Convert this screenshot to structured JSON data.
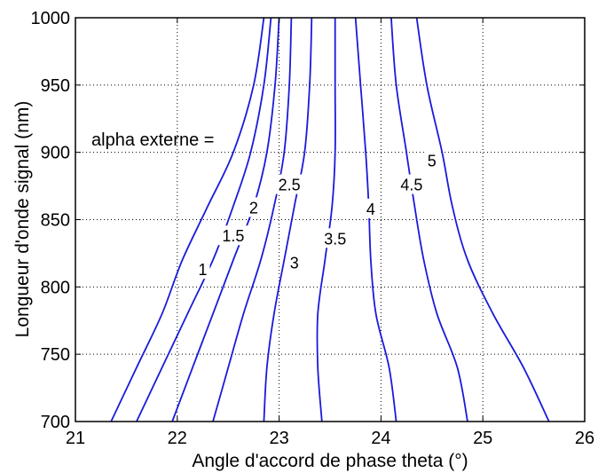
{
  "chart_data": {
    "type": "line",
    "xlabel": "Angle d'accord de phase theta (°)",
    "ylabel": "Longueur d'onde signal (nm)",
    "xlim": [
      21,
      26
    ],
    "ylim": [
      700,
      1000
    ],
    "xticks": [
      21,
      22,
      23,
      24,
      25,
      26
    ],
    "yticks": [
      700,
      750,
      800,
      850,
      900,
      950,
      1000
    ],
    "grid": true,
    "line_color": "#1a1adb",
    "annotation": "alpha externe =",
    "series": [
      {
        "name": "1",
        "label_at": [
          22.25,
          812
        ],
        "points": [
          [
            21.35,
            700
          ],
          [
            21.6,
            740
          ],
          [
            21.85,
            780
          ],
          [
            22.05,
            820
          ],
          [
            22.3,
            860
          ],
          [
            22.55,
            900
          ],
          [
            22.75,
            950
          ],
          [
            22.85,
            1000
          ]
        ]
      },
      {
        "name": "1.5",
        "label_at": [
          22.55,
          837
        ],
        "points": [
          [
            21.6,
            700
          ],
          [
            21.85,
            740
          ],
          [
            22.1,
            780
          ],
          [
            22.35,
            820
          ],
          [
            22.55,
            860
          ],
          [
            22.72,
            900
          ],
          [
            22.85,
            950
          ],
          [
            22.92,
            1000
          ]
        ]
      },
      {
        "name": "2",
        "label_at": [
          22.75,
          858
        ],
        "points": [
          [
            21.95,
            700
          ],
          [
            22.15,
            740
          ],
          [
            22.35,
            780
          ],
          [
            22.55,
            820
          ],
          [
            22.75,
            860
          ],
          [
            22.88,
            900
          ],
          [
            22.96,
            950
          ],
          [
            23.0,
            1000
          ]
        ]
      },
      {
        "name": "2.5",
        "label_at": [
          23.1,
          875
        ],
        "points": [
          [
            22.35,
            700
          ],
          [
            22.5,
            740
          ],
          [
            22.65,
            780
          ],
          [
            22.82,
            820
          ],
          [
            22.95,
            860
          ],
          [
            23.05,
            900
          ],
          [
            23.1,
            950
          ],
          [
            23.12,
            1000
          ]
        ]
      },
      {
        "name": "3",
        "label_at": [
          23.15,
          817
        ],
        "points": [
          [
            22.85,
            700
          ],
          [
            22.88,
            740
          ],
          [
            22.95,
            780
          ],
          [
            23.05,
            820
          ],
          [
            23.15,
            860
          ],
          [
            23.25,
            900
          ],
          [
            23.3,
            950
          ],
          [
            23.32,
            1000
          ]
        ]
      },
      {
        "name": "3.5",
        "label_at": [
          23.55,
          835
        ],
        "points": [
          [
            23.42,
            700
          ],
          [
            23.38,
            740
          ],
          [
            23.38,
            780
          ],
          [
            23.45,
            820
          ],
          [
            23.52,
            860
          ],
          [
            23.55,
            900
          ],
          [
            23.55,
            950
          ],
          [
            23.55,
            1000
          ]
        ]
      },
      {
        "name": "4",
        "label_at": [
          23.9,
          857
        ],
        "points": [
          [
            24.15,
            700
          ],
          [
            24.08,
            740
          ],
          [
            23.95,
            780
          ],
          [
            23.9,
            820
          ],
          [
            23.88,
            860
          ],
          [
            23.85,
            900
          ],
          [
            23.8,
            950
          ],
          [
            23.75,
            1000
          ]
        ]
      },
      {
        "name": "4.5",
        "label_at": [
          24.3,
          875
        ],
        "points": [
          [
            24.85,
            700
          ],
          [
            24.75,
            740
          ],
          [
            24.55,
            780
          ],
          [
            24.42,
            820
          ],
          [
            24.33,
            860
          ],
          [
            24.25,
            900
          ],
          [
            24.15,
            950
          ],
          [
            24.1,
            1000
          ]
        ]
      },
      {
        "name": "5",
        "label_at": [
          24.5,
          893
        ],
        "points": [
          [
            25.65,
            700
          ],
          [
            25.4,
            740
          ],
          [
            25.1,
            780
          ],
          [
            24.85,
            820
          ],
          [
            24.7,
            860
          ],
          [
            24.6,
            900
          ],
          [
            24.45,
            950
          ],
          [
            24.35,
            1000
          ]
        ]
      }
    ]
  }
}
